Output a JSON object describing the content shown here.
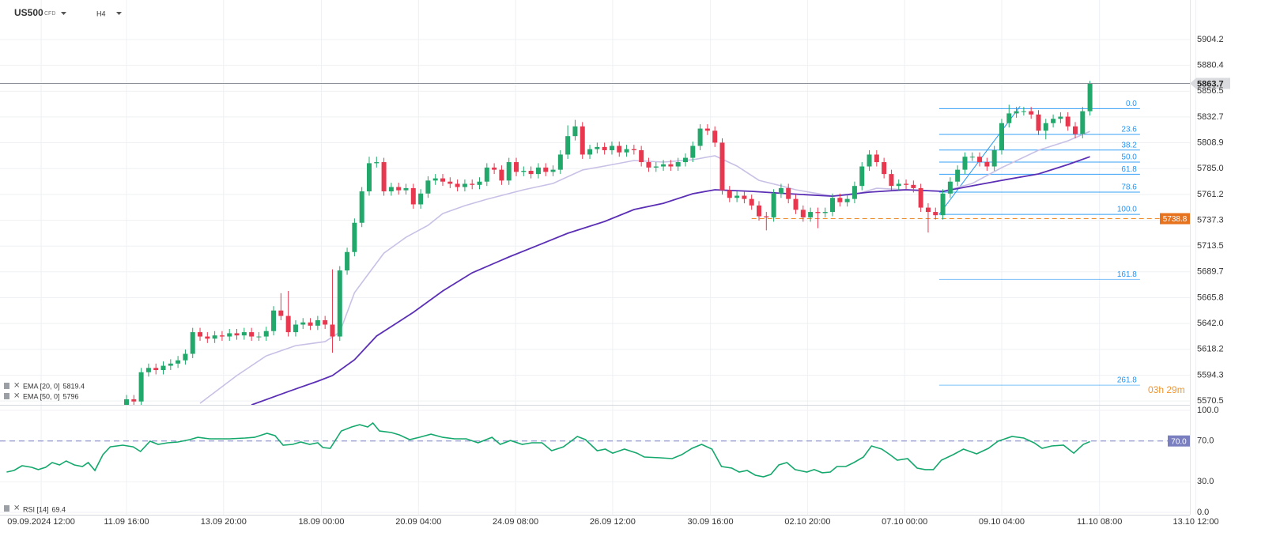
{
  "chart_data": {
    "type": "candlestick",
    "header": {
      "symbol": "US500",
      "kind": "CFD",
      "interval": "H4"
    },
    "xlim": [
      -17.2,
      154.8
    ],
    "xticks": [
      {
        "value": -11.6,
        "label": "09.09.2024 12:00"
      },
      {
        "value": 0,
        "label": "11.09 16:00"
      },
      {
        "value": 13.2,
        "label": "13.09 20:00"
      },
      {
        "value": 26.5,
        "label": "18.09 00:00"
      },
      {
        "value": 39.7,
        "label": "20.09 04:00"
      },
      {
        "value": 52.9,
        "label": "24.09 08:00"
      },
      {
        "value": 66.1,
        "label": "26.09 12:00"
      },
      {
        "value": 79.4,
        "label": "30.09 16:00"
      },
      {
        "value": 92.6,
        "label": "02.10 20:00"
      },
      {
        "value": 105.8,
        "label": "07.10 00:00"
      },
      {
        "value": 119,
        "label": "09.10 04:00"
      },
      {
        "value": 132.3,
        "label": "11.10 08:00"
      },
      {
        "value": 145.4,
        "label": "13.10 12:00"
      }
    ],
    "ylim": [
      5566.9,
      5940.7
    ],
    "yticks": [
      5904.2,
      5880.4,
      5856.5,
      5832.7,
      5808.9,
      {
        "value": 5785,
        "label": "5785.0"
      },
      5761.2,
      5737.3,
      5713.5,
      5689.7,
      5665.8,
      {
        "value": 5642,
        "label": "5642.0"
      },
      5618.2,
      5594.3,
      5570.5
    ],
    "grid": true,
    "up_color": "#22a86b",
    "down_color": "#e8384f",
    "candles": {
      "open": [
        5566,
        5572,
        5570,
        5597,
        5601,
        5599,
        5603,
        5605,
        5608,
        5614,
        5634,
        5630,
        5628,
        5631,
        5630,
        5633,
        5631,
        5634,
        5630,
        5630,
        5635,
        5654,
        5649,
        5634,
        5641,
        5643,
        5640,
        5645,
        5641,
        5630,
        5691,
        5708,
        5735,
        5764,
        5790,
        5791,
        5764,
        5768,
        5765,
        5767,
        5752,
        5762,
        5774,
        5776,
        5773,
        5771,
        5768,
        5771,
        5770,
        5773,
        5786,
        5784,
        5774,
        5791,
        5782,
        5783,
        5780,
        5786,
        5782,
        5784,
        5798,
        5815,
        5824,
        5798,
        5803,
        5805,
        5802,
        5806,
        5800,
        5803,
        5802,
        5791,
        5786,
        5787,
        5789,
        5787,
        5791,
        5795,
        5806,
        5822,
        5820,
        5809,
        5765,
        5758,
        5760,
        5757,
        5751,
        5741,
        5740,
        5762,
        5767,
        5757,
        5747,
        5740,
        5745,
        5744,
        5745,
        5758,
        5754,
        5757,
        5769,
        5787,
        5798,
        5791,
        5780,
        5769,
        5771,
        5770,
        5767,
        5749,
        5745,
        5742,
        5762,
        5773,
        5784,
        5796,
        5796,
        5791,
        5787,
        5802,
        5827,
        5836,
        5838,
        5838,
        5835,
        5820,
        5827,
        5831,
        5833,
        5824,
        5817,
        5838
      ],
      "high": [
        5576,
        5576,
        5601,
        5605,
        5605,
        5607,
        5609,
        5612,
        5618,
        5638,
        5638,
        5634,
        5635,
        5635,
        5637,
        5637,
        5638,
        5638,
        5634,
        5639,
        5658,
        5670,
        5672,
        5645,
        5647,
        5647,
        5649,
        5649,
        5692,
        5695,
        5712,
        5739,
        5768,
        5796,
        5796,
        5795,
        5772,
        5772,
        5771,
        5771,
        5766,
        5778,
        5780,
        5780,
        5777,
        5775,
        5775,
        5775,
        5777,
        5790,
        5790,
        5788,
        5795,
        5795,
        5787,
        5787,
        5790,
        5790,
        5788,
        5802,
        5825,
        5830,
        5828,
        5807,
        5809,
        5809,
        5810,
        5810,
        5807,
        5807,
        5806,
        5795,
        5791,
        5793,
        5793,
        5795,
        5799,
        5810,
        5826,
        5826,
        5824,
        5813,
        5769,
        5764,
        5764,
        5761,
        5755,
        5745,
        5766,
        5771,
        5771,
        5761,
        5751,
        5749,
        5749,
        5749,
        5762,
        5762,
        5761,
        5773,
        5791,
        5802,
        5802,
        5795,
        5784,
        5775,
        5775,
        5774,
        5771,
        5753,
        5749,
        5766,
        5777,
        5788,
        5800,
        5800,
        5800,
        5795,
        5806,
        5831,
        5844,
        5842,
        5842,
        5842,
        5839,
        5831,
        5835,
        5837,
        5837,
        5828,
        5842,
        5866
      ],
      "low": [
        5562,
        5566,
        5566,
        5593,
        5595,
        5595,
        5599,
        5601,
        5604,
        5610,
        5626,
        5624,
        5624,
        5626,
        5626,
        5627,
        5627,
        5626,
        5626,
        5626,
        5631,
        5645,
        5630,
        5630,
        5637,
        5636,
        5636,
        5637,
        5615,
        5626,
        5687,
        5704,
        5731,
        5760,
        5786,
        5760,
        5760,
        5761,
        5761,
        5748,
        5748,
        5758,
        5770,
        5769,
        5767,
        5764,
        5764,
        5766,
        5766,
        5769,
        5780,
        5770,
        5770,
        5778,
        5778,
        5776,
        5776,
        5778,
        5778,
        5780,
        5794,
        5811,
        5794,
        5794,
        5799,
        5798,
        5798,
        5796,
        5796,
        5798,
        5787,
        5782,
        5782,
        5783,
        5783,
        5783,
        5787,
        5791,
        5802,
        5816,
        5805,
        5761,
        5754,
        5754,
        5753,
        5747,
        5737,
        5728,
        5736,
        5758,
        5753,
        5743,
        5736,
        5736,
        5730,
        5740,
        5741,
        5750,
        5750,
        5753,
        5765,
        5783,
        5787,
        5776,
        5765,
        5765,
        5766,
        5763,
        5745,
        5726,
        5738,
        5738,
        5758,
        5769,
        5780,
        5792,
        5787,
        5783,
        5783,
        5798,
        5823,
        5832,
        5834,
        5831,
        5816,
        5812,
        5823,
        5827,
        5820,
        5813,
        5813,
        5834
      ],
      "close": [
        5572,
        5570,
        5597,
        5601,
        5599,
        5603,
        5605,
        5608,
        5614,
        5634,
        5630,
        5628,
        5631,
        5630,
        5633,
        5631,
        5634,
        5630,
        5630,
        5635,
        5654,
        5649,
        5634,
        5641,
        5643,
        5640,
        5645,
        5641,
        5630,
        5691,
        5708,
        5735,
        5764,
        5790,
        5791,
        5764,
        5768,
        5765,
        5767,
        5752,
        5762,
        5774,
        5776,
        5773,
        5771,
        5768,
        5771,
        5770,
        5773,
        5786,
        5784,
        5774,
        5791,
        5782,
        5783,
        5780,
        5786,
        5782,
        5784,
        5798,
        5815,
        5824,
        5798,
        5803,
        5805,
        5802,
        5806,
        5800,
        5803,
        5802,
        5791,
        5786,
        5787,
        5789,
        5787,
        5791,
        5795,
        5806,
        5822,
        5820,
        5809,
        5765,
        5758,
        5760,
        5757,
        5751,
        5741,
        5740,
        5762,
        5767,
        5757,
        5747,
        5740,
        5745,
        5744,
        5745,
        5758,
        5754,
        5757,
        5769,
        5787,
        5798,
        5791,
        5780,
        5769,
        5771,
        5770,
        5767,
        5749,
        5745,
        5742,
        5762,
        5773,
        5784,
        5796,
        5796,
        5791,
        5787,
        5802,
        5827,
        5836,
        5838,
        5838,
        5835,
        5820,
        5827,
        5831,
        5833,
        5824,
        5817,
        5838,
        5863.7
      ]
    },
    "ema20": {
      "name": "EMA [20, 0]",
      "color": "#c9c0e6",
      "x": [
        10,
        15,
        19,
        23,
        27,
        29,
        31,
        33,
        35,
        38,
        41,
        43,
        46,
        49,
        54,
        58,
        62,
        65,
        69,
        73,
        77,
        80,
        83,
        86,
        89,
        91,
        96,
        99,
        102,
        106,
        111,
        115,
        119,
        124,
        128,
        131
      ],
      "values": [
        5568.3,
        5593.9,
        5612.1,
        5621.6,
        5625.2,
        5634.0,
        5670.5,
        5688.8,
        5707.0,
        5721.6,
        5732.6,
        5743.5,
        5750.8,
        5756.7,
        5765.5,
        5771.3,
        5783.7,
        5787.4,
        5792.5,
        5791.0,
        5793.2,
        5796.9,
        5787.4,
        5774.2,
        5769.1,
        5765.5,
        5759.6,
        5761.1,
        5766.9,
        5765.5,
        5764.0,
        5771.3,
        5785.9,
        5802.0,
        5810.7,
        5819.4
      ]
    },
    "ema50": {
      "name": "EMA [50, 0]",
      "color": "#5b2fb5",
      "x": [
        17,
        22,
        26,
        28,
        31,
        34,
        39,
        43,
        47,
        52,
        56,
        60,
        65,
        69,
        73,
        77,
        80,
        85,
        90,
        96,
        101,
        106,
        111,
        115,
        119,
        124,
        128,
        131
      ],
      "values": [
        5566.8,
        5579.2,
        5588.7,
        5593.9,
        5608.5,
        5630.4,
        5652.3,
        5672.0,
        5688.8,
        5703.4,
        5714.3,
        5725.3,
        5736.2,
        5747.2,
        5753.0,
        5761.8,
        5765.5,
        5764.0,
        5761.8,
        5759.6,
        5763.3,
        5765.5,
        5764.0,
        5769.1,
        5774.2,
        5780.1,
        5788.8,
        5796.0
      ]
    },
    "last_price": {
      "value": 5863.7
    },
    "stop_level": {
      "value": 5738.8,
      "from": 85
    },
    "countdown": "03h 29m",
    "fib": {
      "from": 110.5,
      "to": 137.8,
      "color": "#2196f3",
      "levels": [
        {
          "value": 0,
          "label": "0.0",
          "price": 5840.4
        },
        {
          "value": 23.6,
          "label": "23.6",
          "price": 5816.6
        },
        {
          "value": 38.2,
          "label": "38.2",
          "price": 5802.2
        },
        {
          "value": 50,
          "label": "50.0",
          "price": 5791.0
        },
        {
          "value": 61.8,
          "label": "61.8",
          "price": 5779.8
        },
        {
          "value": 78.6,
          "label": "78.6",
          "price": 5763.3
        },
        {
          "value": 100,
          "label": "100.0",
          "price": 5742.8
        },
        {
          "value": 161.8,
          "label": "161.8",
          "price": 5682.7
        },
        {
          "value": 261.8,
          "label": "261.8",
          "price": 5585.1
        }
      ],
      "trend": {
        "x": [
          110.5,
          121.5
        ],
        "y": [
          5742.8,
          5842.6
        ]
      }
    },
    "rsi": {
      "name": "RSI [14]",
      "color": "#14a86c",
      "ylim": [
        0,
        100
      ],
      "yticks": [
        {
          "value": 0,
          "label": "0.0"
        },
        {
          "value": 30,
          "label": "30.0"
        },
        {
          "value": 70,
          "label": "70.0"
        },
        {
          "value": 100,
          "label": "100.0"
        }
      ],
      "level": {
        "value": 70,
        "label": "70.0"
      },
      "x": [
        -16.3,
        -15.3,
        -14.2,
        -12.9,
        -12.0,
        -11.0,
        -10.1,
        -9.1,
        -8.2,
        -7.1,
        -6.0,
        -5.2,
        -4.3,
        -3.2,
        -2.2,
        -0.5,
        0.9,
        1.9,
        3.2,
        4.3,
        5.6,
        7.0,
        8.6,
        9.7,
        11.3,
        14.0,
        16.1,
        17.4,
        19.1,
        20.2,
        21.3,
        22.6,
        23.7,
        24.9,
        26.0,
        26.7,
        27.7,
        29.2,
        30.6,
        31.7,
        32.8,
        33.5,
        34.4,
        36.0,
        37.1,
        38.5,
        39.8,
        41.4,
        43.0,
        44.6,
        46.2,
        47.8,
        49.7,
        50.8,
        52.2,
        53.8,
        55.1,
        56.5,
        57.8,
        59.4,
        61.3,
        62.4,
        64.0,
        65.1,
        66.1,
        67.7,
        69.4,
        70.4,
        72.6,
        74.2,
        75.5,
        76.9,
        78.2,
        79.6,
        80.9,
        82.3,
        83.3,
        84.4,
        85.5,
        86.6,
        87.6,
        88.7,
        89.8,
        90.9,
        92.5,
        93.5,
        94.6,
        95.7,
        96.6,
        97.8,
        98.9,
        100.2,
        101.3,
        102.7,
        103.8,
        104.8,
        106.2,
        107.5,
        108.6,
        109.7,
        110.8,
        112.4,
        113.8,
        115.6,
        117.2,
        118.5,
        120.4,
        122.0,
        123.4,
        124.5,
        125.8,
        127.4,
        128.8,
        130.1,
        131
      ],
      "values": [
        39.5,
        41.1,
        45.7,
        44.2,
        41.9,
        44.2,
        48.8,
        46.5,
        50.4,
        46.5,
        45.0,
        48.8,
        41.1,
        56.6,
        64.3,
        65.9,
        64.3,
        59.7,
        69.8,
        66.7,
        68.2,
        69.0,
        71.3,
        73.6,
        72.1,
        72.1,
        72.9,
        73.6,
        77.5,
        75.2,
        65.9,
        66.7,
        69.0,
        66.7,
        68.2,
        63.6,
        62.8,
        79.8,
        83.7,
        86.0,
        83.7,
        87.6,
        79.8,
        78.3,
        76.0,
        71.3,
        73.6,
        76.7,
        73.6,
        72.1,
        72.1,
        68.2,
        73.6,
        66.7,
        70.5,
        66.7,
        68.2,
        68.2,
        60.5,
        64.3,
        74.4,
        71.3,
        60.5,
        62.0,
        58.1,
        62.0,
        58.1,
        54.3,
        53.5,
        52.7,
        56.6,
        62.8,
        66.7,
        62.0,
        45.0,
        43.4,
        39.5,
        41.1,
        36.4,
        34.9,
        37.2,
        46.5,
        48.8,
        41.9,
        39.5,
        41.9,
        38.8,
        39.5,
        45.0,
        45.0,
        48.8,
        54.3,
        65.1,
        62.0,
        56.6,
        51.2,
        52.7,
        43.4,
        41.9,
        41.9,
        51.2,
        56.6,
        62.0,
        57.4,
        62.8,
        69.8,
        74.4,
        72.9,
        68.2,
        62.8,
        65.1,
        65.9,
        58.1,
        66.7,
        69.4
      ]
    }
  }
}
